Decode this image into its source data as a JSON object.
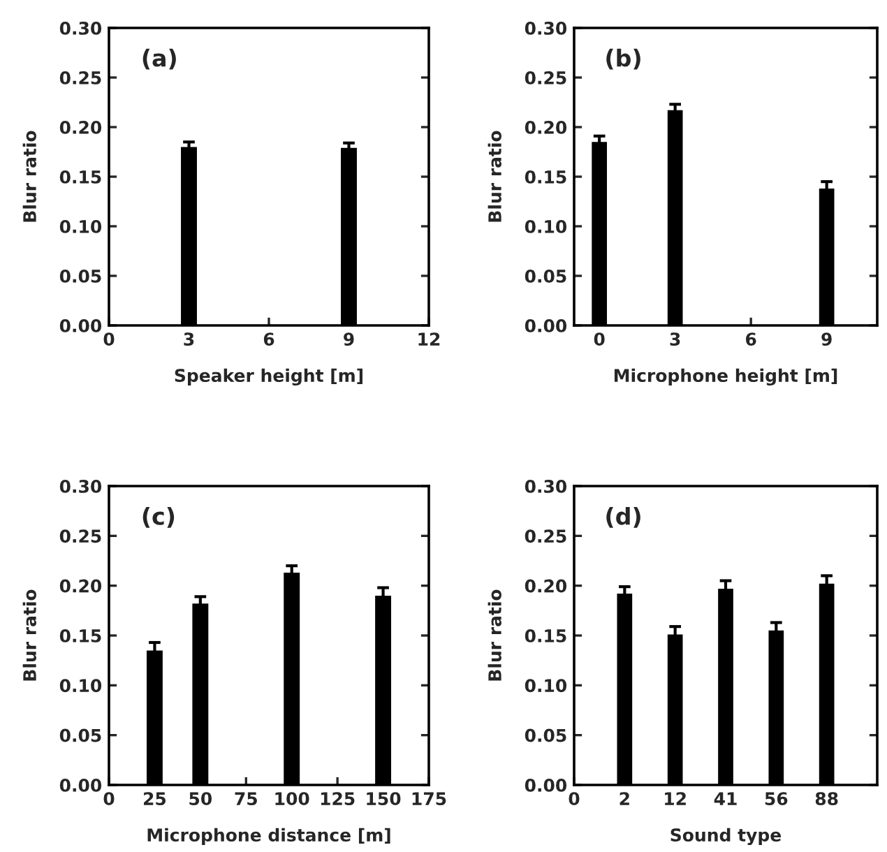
{
  "chart_data": [
    {
      "type": "bar",
      "x": [
        3,
        9
      ],
      "values": [
        0.18,
        0.179
      ],
      "errors": [
        0.005,
        0.005
      ],
      "color": "#000000",
      "xlim": [
        0,
        12
      ],
      "xticks": [
        0,
        3,
        6,
        9,
        12
      ],
      "ylim": [
        0,
        0.3
      ],
      "yticks": [
        {
          "value": 0,
          "label": "0.00"
        },
        {
          "value": 0.05,
          "label": "0.05"
        },
        {
          "value": 0.1,
          "label": "0.10"
        },
        {
          "value": 0.15,
          "label": "0.15"
        },
        {
          "value": 0.2,
          "label": "0.20"
        },
        {
          "value": 0.25,
          "label": "0.25"
        },
        {
          "value": 0.3,
          "label": "0.30"
        }
      ],
      "xlabel": "Speaker height [m]",
      "ylabel": "Blur ratio",
      "annotations": [
        "(a)"
      ]
    },
    {
      "type": "bar",
      "x": [
        0,
        3,
        9
      ],
      "values": [
        0.185,
        0.217,
        0.138
      ],
      "errors": [
        0.006,
        0.006,
        0.007
      ],
      "color": "#000000",
      "xlim": [
        -1,
        11
      ],
      "xticks": [
        0,
        3,
        6,
        9
      ],
      "ylim": [
        0,
        0.3
      ],
      "yticks": [
        {
          "value": 0,
          "label": "0.00"
        },
        {
          "value": 0.05,
          "label": "0.05"
        },
        {
          "value": 0.1,
          "label": "0.10"
        },
        {
          "value": 0.15,
          "label": "0.15"
        },
        {
          "value": 0.2,
          "label": "0.20"
        },
        {
          "value": 0.25,
          "label": "0.25"
        },
        {
          "value": 0.3,
          "label": "0.30"
        }
      ],
      "xlabel": "Microphone height [m]",
      "ylabel": "Blur ratio",
      "annotations": [
        "(b)"
      ]
    },
    {
      "type": "bar",
      "x": [
        25,
        50,
        100,
        150
      ],
      "values": [
        0.135,
        0.182,
        0.213,
        0.19
      ],
      "errors": [
        0.008,
        0.007,
        0.007,
        0.008
      ],
      "color": "#000000",
      "xlim": [
        0,
        175
      ],
      "xticks": [
        0,
        25,
        50,
        75,
        100,
        125,
        150,
        175
      ],
      "ylim": [
        0,
        0.3
      ],
      "yticks": [
        {
          "value": 0,
          "label": "0.00"
        },
        {
          "value": 0.05,
          "label": "0.05"
        },
        {
          "value": 0.1,
          "label": "0.10"
        },
        {
          "value": 0.15,
          "label": "0.15"
        },
        {
          "value": 0.2,
          "label": "0.20"
        },
        {
          "value": 0.25,
          "label": "0.25"
        },
        {
          "value": 0.3,
          "label": "0.30"
        }
      ],
      "xlabel": "Microphone distance [m]",
      "ylabel": "Blur ratio",
      "annotations": [
        "(c)"
      ]
    },
    {
      "type": "bar",
      "categories": [
        "0",
        "2",
        "12",
        "41",
        "56",
        "88"
      ],
      "values": [
        null,
        0.192,
        0.151,
        0.197,
        0.155,
        0.202
      ],
      "errors": [
        null,
        0.007,
        0.008,
        0.008,
        0.008,
        0.008
      ],
      "color": "#000000",
      "ylim": [
        0,
        0.3
      ],
      "yticks": [
        {
          "value": 0,
          "label": "0.00"
        },
        {
          "value": 0.05,
          "label": "0.05"
        },
        {
          "value": 0.1,
          "label": "0.10"
        },
        {
          "value": 0.15,
          "label": "0.15"
        },
        {
          "value": 0.2,
          "label": "0.20"
        },
        {
          "value": 0.25,
          "label": "0.25"
        },
        {
          "value": 0.3,
          "label": "0.30"
        }
      ],
      "xlabel": "Sound type",
      "ylabel": "Blur ratio",
      "annotations": [
        "(d)"
      ]
    }
  ]
}
